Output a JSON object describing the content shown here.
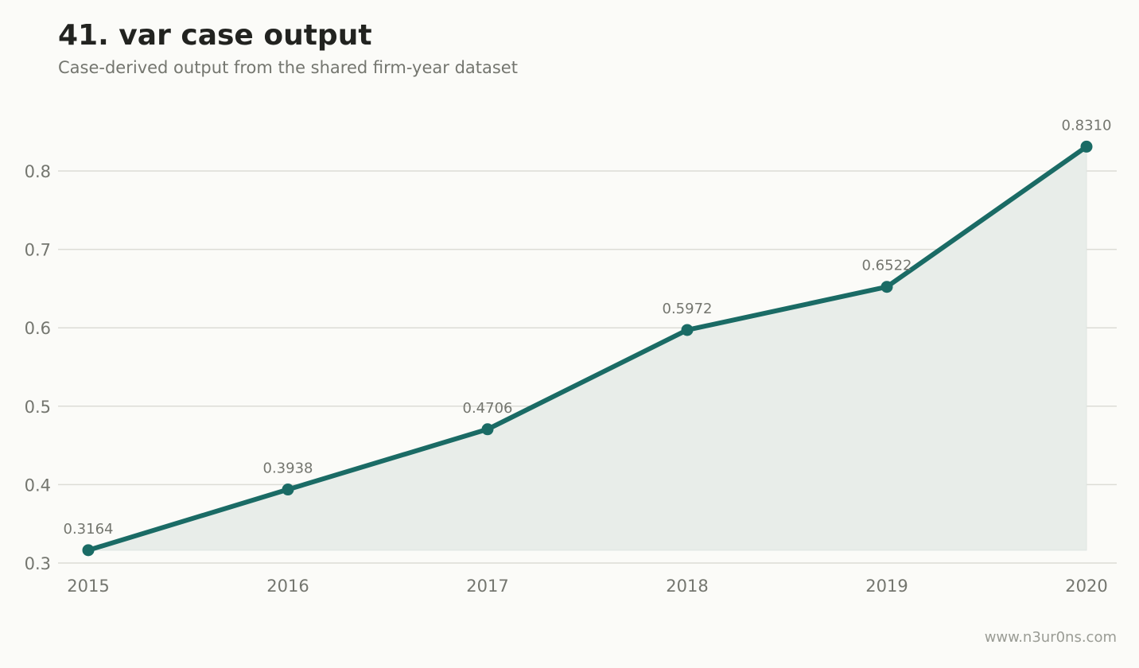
{
  "header": {
    "title": "41. var case output",
    "subtitle": "Case-derived output from the shared firm-year dataset"
  },
  "footer": {
    "watermark": "www.n3ur0ns.com"
  },
  "colors": {
    "line": "#1a6b65",
    "area": "#e8ede9",
    "grid": "#dcdcd6"
  },
  "chart_data": {
    "type": "line",
    "title": "41. var case output",
    "subtitle": "Case-derived output from the shared firm-year dataset",
    "xlabel": "",
    "ylabel": "",
    "x": [
      "2015",
      "2016",
      "2017",
      "2018",
      "2019",
      "2020"
    ],
    "series": [
      {
        "values": [
          0.3164,
          0.3938,
          0.4706,
          0.5972,
          0.6522,
          0.831
        ],
        "labels": [
          "0.3164",
          "0.3938",
          "0.4706",
          "0.5972",
          "0.6522",
          "0.8310"
        ]
      }
    ],
    "yticks": [
      "0.3",
      "0.4",
      "0.5",
      "0.6",
      "0.7",
      "0.8"
    ],
    "ylim": [
      0.3,
      0.8
    ],
    "grid": "horizontal",
    "area_fill": true,
    "legend": "none"
  }
}
